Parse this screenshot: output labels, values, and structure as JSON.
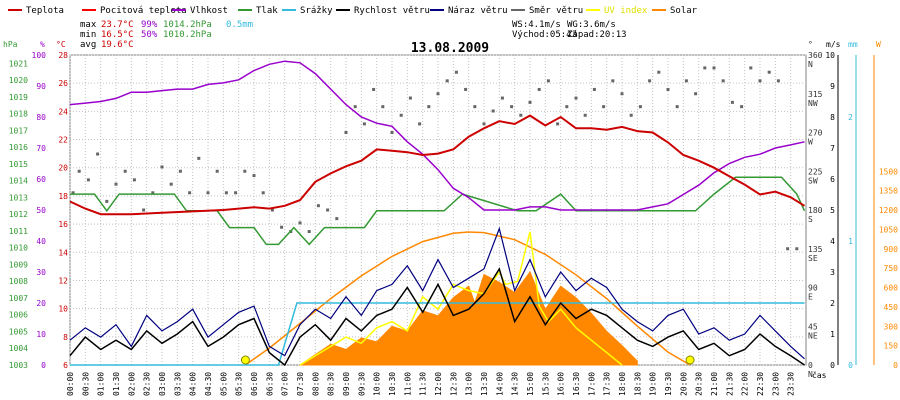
{
  "chart_data": {
    "type": "line",
    "title": "13.08.2009",
    "xlabel": "čas",
    "legend": [
      {
        "name": "Teplota",
        "color": "#cc0000"
      },
      {
        "name": "Pocitová teplota",
        "color": "#ff0000"
      },
      {
        "name": "Vlhkost",
        "color": "#9900cc"
      },
      {
        "name": "Tlak",
        "color": "#339933"
      },
      {
        "name": "Srážky",
        "color": "#33bbdd"
      },
      {
        "name": "Rychlost větru",
        "color": "#000000"
      },
      {
        "name": "Náraz větru",
        "color": "#000080"
      },
      {
        "name": "Směr větru",
        "color": "#666666"
      },
      {
        "name": "UV index",
        "color": "#ffff00"
      },
      {
        "name": "Solar",
        "color": "#ff8800"
      }
    ],
    "stats": {
      "max_label": "max",
      "max_temp": "23.7°C",
      "max_hum": "99%",
      "max_press": "1014.2hPa",
      "rain": "0.5mm",
      "min_label": "min",
      "min_temp": "16.5°C",
      "min_hum": "50%",
      "min_press": "1010.2hPa",
      "avg_label": "avg",
      "avg_temp": "19.6°C"
    },
    "wind_info": {
      "ws": "WS:4.1m/s",
      "wg": "WG:3.6m/s",
      "sunrise": "Východ:05:43",
      "sunset": "Západ:20:13"
    },
    "axes": {
      "hpa": {
        "unit": "hPa",
        "ticks": [
          1003,
          1004,
          1005,
          1006,
          1007,
          1008,
          1009,
          1010,
          1011,
          1012,
          1013,
          1014,
          1015,
          1016,
          1017,
          1018,
          1019,
          1020,
          1021
        ],
        "range": [
          1003,
          1021.5
        ],
        "color": "#339933"
      },
      "pct": {
        "unit": "%",
        "ticks": [
          0,
          10,
          20,
          30,
          40,
          50,
          60,
          70,
          80,
          90,
          100
        ],
        "range": [
          0,
          100
        ],
        "color": "#9900cc"
      },
      "temp": {
        "unit": "°C",
        "ticks": [
          6,
          8,
          10,
          12,
          14,
          16,
          18,
          20,
          22,
          24,
          26,
          28
        ],
        "range": [
          6,
          28
        ],
        "color": "#cc0000"
      },
      "dir": {
        "unit": "°",
        "ticks": [
          "0 N",
          "45 NE",
          "90 E",
          "135 SE",
          "180 S",
          "225 SW",
          "270 W",
          "315 NW",
          "360 N"
        ],
        "range": [
          0,
          360
        ],
        "color": "#333333"
      },
      "ms": {
        "unit": "m/s",
        "ticks": [
          0,
          1,
          2,
          3,
          4,
          5,
          6,
          7,
          8,
          9,
          10
        ],
        "range": [
          0,
          10
        ],
        "color": "#000000"
      },
      "mm": {
        "unit": "mm",
        "ticks": [
          0,
          1,
          2
        ],
        "range": [
          0,
          2.5
        ],
        "color": "#33bbdd"
      },
      "w": {
        "unit": "W",
        "ticks": [
          0,
          150,
          300,
          450,
          600,
          750,
          900,
          1050,
          1200,
          1350,
          1500
        ],
        "range": [
          0,
          2400
        ],
        "color": "#ff8800"
      }
    },
    "x_ticks": [
      "00:00",
      "00:30",
      "01:00",
      "01:30",
      "02:00",
      "02:30",
      "03:00",
      "03:30",
      "04:00",
      "04:30",
      "05:00",
      "05:30",
      "06:00",
      "06:30",
      "07:00",
      "07:30",
      "08:00",
      "08:30",
      "09:00",
      "09:30",
      "10:00",
      "10:30",
      "11:00",
      "11:30",
      "12:00",
      "12:30",
      "13:00",
      "13:30",
      "14:00",
      "14:30",
      "15:00",
      "15:30",
      "16:00",
      "16:30",
      "17:00",
      "17:30",
      "18:00",
      "18:30",
      "19:00",
      "19:30",
      "20:00",
      "20:30",
      "21:00",
      "21:30",
      "22:00",
      "22:30",
      "23:00",
      "23:30"
    ],
    "series": {
      "temperature": {
        "name": "Teplota",
        "hours": [
          0,
          0.5,
          1,
          2,
          3,
          4,
          5,
          6,
          6.5,
          7,
          7.5,
          8,
          8.5,
          9,
          9.5,
          10,
          10.5,
          11,
          11.5,
          12,
          12.5,
          13,
          13.5,
          14,
          14.5,
          15,
          15.5,
          16,
          16.5,
          17,
          17.5,
          18,
          18.5,
          19,
          19.5,
          20,
          20.5,
          21,
          21.5,
          22,
          22.5,
          23,
          23.5,
          23.95
        ],
        "values": [
          17.6,
          17.1,
          16.7,
          16.7,
          16.8,
          16.9,
          17.0,
          17.2,
          17.1,
          17.3,
          17.7,
          19.0,
          19.6,
          20.1,
          20.5,
          21.3,
          21.2,
          21.1,
          20.9,
          21.0,
          21.3,
          22.2,
          22.8,
          23.3,
          23.1,
          23.7,
          23.0,
          23.6,
          22.8,
          22.8,
          22.7,
          22.9,
          22.6,
          22.5,
          21.8,
          20.9,
          20.5,
          20.0,
          19.4,
          18.8,
          18.1,
          18.3,
          17.9,
          17.3
        ]
      },
      "humidity": {
        "name": "Vlhkost",
        "hours": [
          0,
          0.5,
          1,
          1.5,
          2,
          2.5,
          3,
          3.5,
          4,
          4.5,
          5,
          5.5,
          6,
          6.5,
          7,
          7.5,
          8,
          8.5,
          9,
          9.5,
          10,
          10.5,
          11,
          11.5,
          12,
          12.5,
          13,
          13.5,
          14,
          14.5,
          15,
          15.5,
          16,
          16.5,
          17,
          17.5,
          18,
          18.5,
          19,
          19.5,
          20,
          20.5,
          21,
          21.5,
          22,
          22.5,
          23,
          23.5,
          23.95
        ],
        "values": [
          84,
          84.5,
          85,
          86,
          88,
          88,
          88.5,
          89,
          89,
          90.5,
          91,
          92,
          95,
          97,
          98,
          97.5,
          94,
          89,
          84,
          80,
          78,
          77,
          72,
          68,
          63,
          57,
          54,
          50,
          50,
          50,
          51,
          51,
          50,
          50,
          50,
          50,
          50,
          50,
          51,
          52,
          55,
          58,
          62,
          65,
          67,
          68,
          70,
          71,
          72
        ]
      },
      "pressure": {
        "name": "Tlak",
        "hours": [
          0,
          0.8,
          1.2,
          1.6,
          2,
          2.6,
          3.4,
          3.8,
          4.8,
          5.2,
          6,
          6.4,
          6.8,
          7.3,
          7.8,
          8.3,
          9.2,
          9.6,
          10,
          12.2,
          12.8,
          14.6,
          15.2,
          16,
          16.5,
          17,
          18.6,
          19.2,
          20.4,
          21,
          21.7,
          22.2,
          22.6,
          23.2,
          23.7,
          23.95
        ],
        "values": [
          1013.2,
          1013.2,
          1012.2,
          1013.2,
          1013.2,
          1013.2,
          1013.2,
          1012.2,
          1012.2,
          1011.2,
          1011.2,
          1010.2,
          1010.2,
          1011.2,
          1010.2,
          1011.2,
          1011.2,
          1011.2,
          1012.2,
          1012.2,
          1013.2,
          1012.2,
          1012.2,
          1013.2,
          1012.2,
          1012.2,
          1012.2,
          1012.2,
          1012.2,
          1013.2,
          1014.2,
          1014.2,
          1014.2,
          1014.2,
          1013.2,
          1012.2
        ]
      },
      "rain": {
        "name": "Srážky",
        "hours": [
          0,
          6.8,
          7.4,
          7.9,
          23.95
        ],
        "values": [
          0,
          0,
          0.5,
          0.5,
          0.5
        ]
      },
      "wind_speed": {
        "name": "Rychlost větru",
        "hours": [
          0,
          0.5,
          1,
          1.5,
          2,
          2.5,
          3,
          3.5,
          4,
          4.5,
          5,
          5.5,
          6,
          6.5,
          7,
          7.5,
          8,
          8.5,
          9,
          9.5,
          10,
          10.5,
          11,
          11.5,
          12,
          12.5,
          13,
          13.5,
          14,
          14.5,
          15,
          15.5,
          16,
          16.5,
          17,
          17.5,
          18,
          18.5,
          19,
          19.5,
          20,
          20.5,
          21,
          21.5,
          22,
          22.5,
          23,
          23.5,
          23.95
        ],
        "values": [
          0.3,
          0.9,
          0.5,
          0.8,
          0.5,
          1.1,
          0.7,
          1.0,
          1.4,
          0.6,
          0.9,
          1.3,
          1.5,
          0.4,
          0,
          0.9,
          1.3,
          0.8,
          1.5,
          1.1,
          1.6,
          1.8,
          2.5,
          1.7,
          2.6,
          1.6,
          1.8,
          2.3,
          3.1,
          1.4,
          2.2,
          1.3,
          2.0,
          1.5,
          1.8,
          1.6,
          1.2,
          0.8,
          0.6,
          0.9,
          1.1,
          0.5,
          0.7,
          0.3,
          0.5,
          1.0,
          0.6,
          0.3,
          0
        ]
      },
      "wind_gust": {
        "name": "Náraz větru",
        "hours": [
          0,
          0.5,
          1,
          1.5,
          2,
          2.5,
          3,
          3.5,
          4,
          4.5,
          5,
          5.5,
          6,
          6.5,
          7,
          7.5,
          8,
          8.5,
          9,
          9.5,
          10,
          10.5,
          11,
          11.5,
          12,
          12.5,
          13,
          13.5,
          14,
          14.5,
          15,
          15.5,
          16,
          16.5,
          17,
          17.5,
          18,
          18.5,
          19,
          19.5,
          20,
          20.5,
          21,
          21.5,
          22,
          22.5,
          23,
          23.5,
          23.95
        ],
        "values": [
          0.8,
          1.2,
          0.9,
          1.3,
          0.6,
          1.6,
          1.1,
          1.4,
          1.8,
          0.9,
          1.3,
          1.7,
          1.9,
          0.6,
          0.3,
          1.3,
          1.8,
          1.5,
          2.2,
          1.6,
          2.4,
          2.6,
          3.2,
          2.4,
          3.4,
          2.5,
          2.8,
          3.1,
          4.4,
          2.4,
          3.4,
          2.2,
          3.0,
          2.4,
          2.8,
          2.5,
          1.8,
          1.4,
          1.1,
          1.6,
          1.8,
          1.0,
          1.2,
          0.8,
          1.0,
          1.6,
          1.1,
          0.6,
          0.2
        ]
      },
      "uv_index": {
        "name": "UV index",
        "hours": [
          7.5,
          8,
          8.5,
          9,
          9.5,
          10,
          10.5,
          11,
          11.5,
          12,
          12.5,
          13,
          13.5,
          14,
          14.2,
          14.6,
          15,
          15.3,
          15.6,
          16,
          16.5,
          17,
          17.5,
          18
        ],
        "values": [
          0,
          0.3,
          0.6,
          0.9,
          0.7,
          1.2,
          1.4,
          1.1,
          2.2,
          1.8,
          2.6,
          2.4,
          2.3,
          3.0,
          2.6,
          2.7,
          4.3,
          1.9,
          1.4,
          1.8,
          1.2,
          0.8,
          0.4,
          0
        ]
      },
      "solar_theoretical": {
        "name": "Solar",
        "hours": [
          5.72,
          6.5,
          7.5,
          8.5,
          9.5,
          10.5,
          11.5,
          12.5,
          13,
          13.5,
          14.5,
          15.5,
          16.5,
          17.5,
          18.5,
          19.5,
          20.22
        ],
        "values": [
          0,
          131,
          321,
          514,
          690,
          841,
          955,
          1020,
          1030,
          1025,
          970,
          856,
          698,
          514,
          301,
          100,
          0
        ]
      },
      "solar_measured": {
        "name": "Solar",
        "hours": [
          7.5,
          8,
          8.5,
          9,
          9.5,
          10,
          10.5,
          11,
          11.5,
          12,
          12.5,
          13,
          13.2,
          13.5,
          14,
          14.5,
          15,
          15.5,
          16,
          16.5,
          17,
          17.5,
          18,
          18.5
        ],
        "values": [
          0,
          80,
          160,
          120,
          210,
          180,
          300,
          260,
          420,
          380,
          520,
          610,
          480,
          700,
          640,
          560,
          720,
          430,
          610,
          520,
          400,
          260,
          150,
          30
        ]
      },
      "wind_direction": {
        "name": "Směr větru",
        "hours": [
          0.1,
          0.3,
          0.6,
          0.9,
          1.2,
          1.5,
          1.8,
          2.1,
          2.4,
          2.7,
          3.0,
          3.3,
          3.6,
          3.9,
          4.2,
          4.5,
          4.8,
          5.1,
          5.4,
          5.7,
          6.0,
          6.3,
          6.6,
          6.9,
          7.2,
          7.5,
          7.8,
          8.1,
          8.4,
          8.7,
          9.0,
          9.3,
          9.6,
          9.9,
          10.2,
          10.5,
          10.8,
          11.1,
          11.4,
          11.7,
          12.0,
          12.3,
          12.6,
          12.9,
          13.2,
          13.5,
          13.8,
          14.1,
          14.4,
          14.7,
          15.0,
          15.3,
          15.6,
          15.9,
          16.2,
          16.5,
          16.8,
          17.1,
          17.4,
          17.7,
          18.0,
          18.3,
          18.6,
          18.9,
          19.2,
          19.5,
          19.8,
          20.1,
          20.4,
          20.7,
          21.0,
          21.3,
          21.6,
          21.9,
          22.2,
          22.5,
          22.8,
          23.1,
          23.4,
          23.7
        ],
        "values": [
          200,
          225,
          215,
          245,
          190,
          210,
          225,
          215,
          180,
          200,
          230,
          210,
          225,
          200,
          240,
          200,
          225,
          200,
          200,
          225,
          220,
          200,
          180,
          160,
          155,
          165,
          155,
          185,
          180,
          170,
          270,
          300,
          280,
          320,
          300,
          270,
          290,
          310,
          280,
          300,
          315,
          330,
          340,
          320,
          300,
          280,
          295,
          310,
          300,
          290,
          305,
          320,
          330,
          280,
          300,
          310,
          290,
          320,
          300,
          330,
          315,
          290,
          300,
          330,
          340,
          320,
          300,
          330,
          315,
          345,
          345,
          330,
          305,
          300,
          345,
          330,
          340,
          330,
          135,
          135
        ]
      }
    },
    "sun_markers": {
      "sunrise_hour": 5.72,
      "sunset_hour": 20.22
    },
    "colors": {
      "grid": "#c0c0c0",
      "plot_bg": "#ffffff",
      "border": "#808080"
    }
  }
}
